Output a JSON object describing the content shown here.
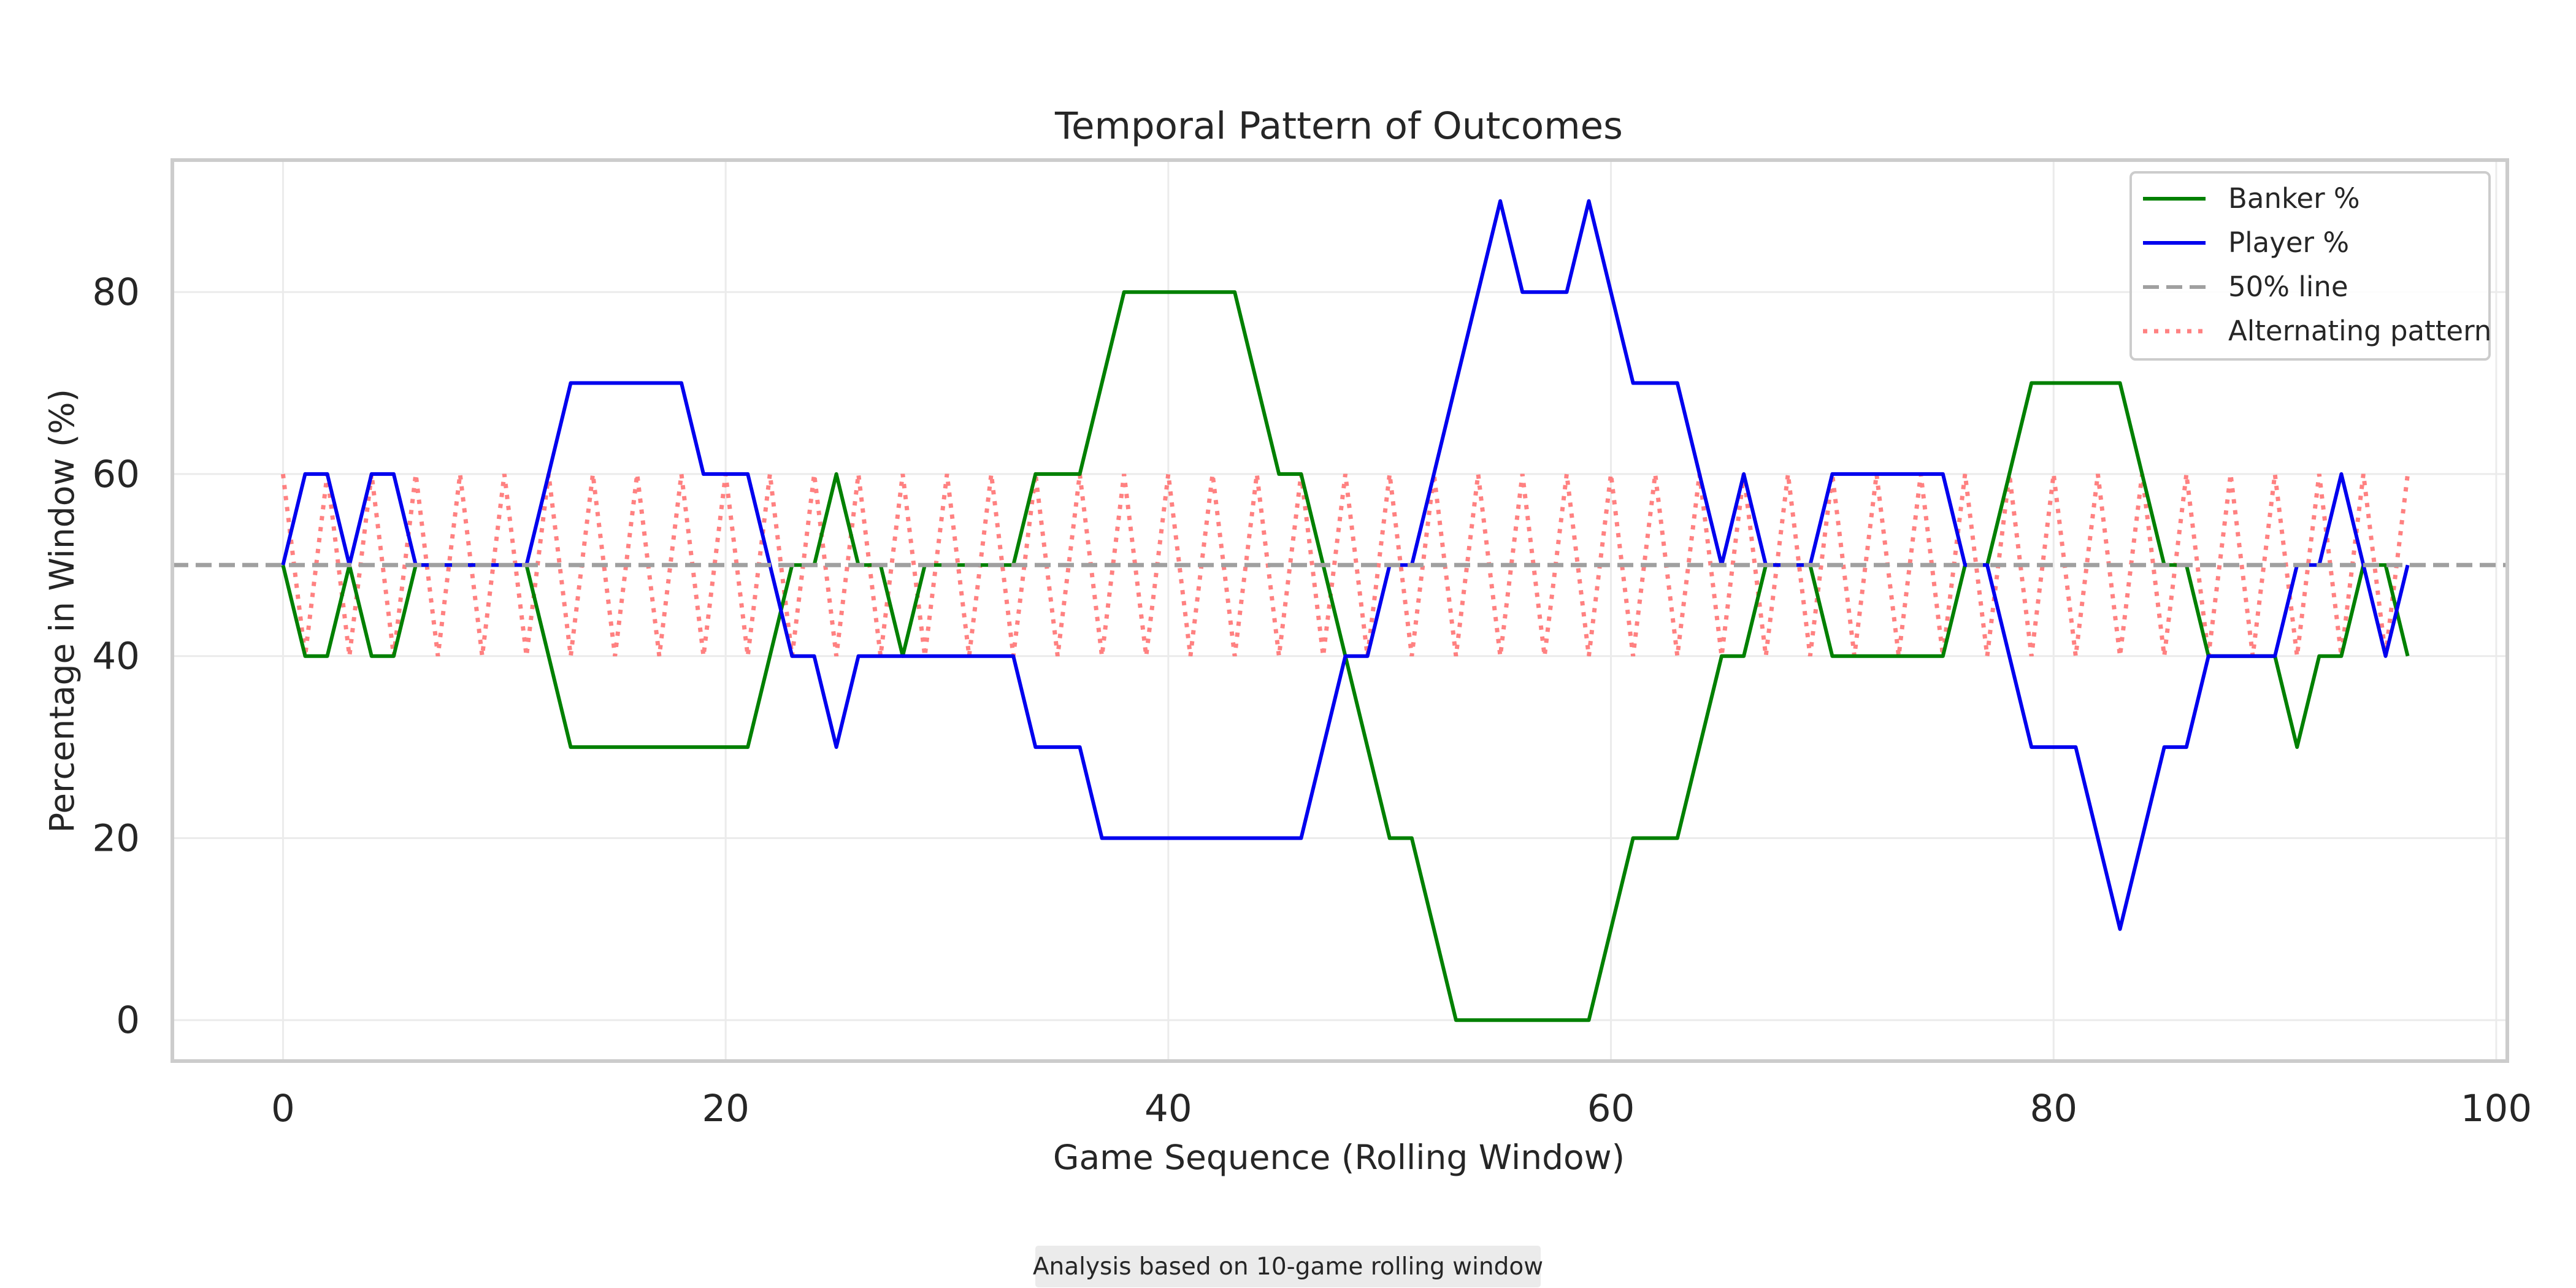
{
  "chart_data": {
    "type": "line",
    "title": "Temporal Pattern of Outcomes",
    "xlabel": "Game Sequence (Rolling Window)",
    "ylabel": "Percentage in Window (%)",
    "xlim": [
      -5,
      100.5
    ],
    "ylim": [
      -4.5,
      94.5
    ],
    "xticks": [
      0,
      20,
      40,
      60,
      80,
      100
    ],
    "yticks": [
      0,
      20,
      40,
      60,
      80
    ],
    "grid": true,
    "legend_position": "top-right",
    "series": [
      {
        "name": "Banker %",
        "color": "#008000",
        "style": "solid",
        "x": [
          0,
          1,
          2,
          3,
          4,
          5,
          6,
          7,
          8,
          9,
          10,
          11,
          12,
          13,
          14,
          15,
          16,
          17,
          18,
          19,
          20,
          21,
          22,
          23,
          24,
          25,
          26,
          27,
          28,
          29,
          30,
          31,
          32,
          33,
          34,
          35,
          36,
          37,
          38,
          39,
          40,
          41,
          42,
          43,
          44,
          45,
          46,
          47,
          48,
          49,
          50,
          51,
          52,
          53,
          54,
          55,
          56,
          57,
          58,
          59,
          60,
          61,
          62,
          63,
          64,
          65,
          66,
          67,
          68,
          69,
          70,
          71,
          72,
          73,
          74,
          75,
          76,
          77,
          78,
          79,
          80,
          81,
          82,
          83,
          84,
          85,
          86,
          87,
          88,
          89,
          90,
          91,
          92,
          93,
          94,
          95,
          96
        ],
        "values": [
          50,
          40,
          40,
          50,
          40,
          40,
          50,
          50,
          50,
          50,
          50,
          50,
          40,
          30,
          30,
          30,
          30,
          30,
          30,
          30,
          30,
          30,
          40,
          50,
          50,
          60,
          50,
          50,
          40,
          50,
          50,
          50,
          50,
          50,
          60,
          60,
          60,
          70,
          80,
          80,
          80,
          80,
          80,
          80,
          70,
          60,
          60,
          50,
          40,
          30,
          20,
          20,
          10,
          0,
          0,
          0,
          0,
          0,
          0,
          0,
          10,
          20,
          20,
          20,
          30,
          40,
          40,
          50,
          50,
          50,
          40,
          40,
          40,
          40,
          40,
          40,
          50,
          50,
          60,
          70,
          70,
          70,
          70,
          70,
          60,
          50,
          50,
          40,
          40,
          40,
          40,
          30,
          40,
          40,
          50,
          50,
          40
        ]
      },
      {
        "name": "Player %",
        "color": "#0000ee",
        "style": "solid",
        "x": [
          0,
          1,
          2,
          3,
          4,
          5,
          6,
          7,
          8,
          9,
          10,
          11,
          12,
          13,
          14,
          15,
          16,
          17,
          18,
          19,
          20,
          21,
          22,
          23,
          24,
          25,
          26,
          27,
          28,
          29,
          30,
          31,
          32,
          33,
          34,
          35,
          36,
          37,
          38,
          39,
          40,
          41,
          42,
          43,
          44,
          45,
          46,
          47,
          48,
          49,
          50,
          51,
          52,
          53,
          54,
          55,
          56,
          57,
          58,
          59,
          60,
          61,
          62,
          63,
          64,
          65,
          66,
          67,
          68,
          69,
          70,
          71,
          72,
          73,
          74,
          75,
          76,
          77,
          78,
          79,
          80,
          81,
          82,
          83,
          84,
          85,
          86,
          87,
          88,
          89,
          90,
          91,
          92,
          93,
          94,
          95,
          96
        ],
        "values": [
          50,
          60,
          60,
          50,
          60,
          60,
          50,
          50,
          50,
          50,
          50,
          50,
          60,
          70,
          70,
          70,
          70,
          70,
          70,
          60,
          60,
          60,
          50,
          40,
          40,
          30,
          40,
          40,
          40,
          40,
          40,
          40,
          40,
          40,
          30,
          30,
          30,
          20,
          20,
          20,
          20,
          20,
          20,
          20,
          20,
          20,
          20,
          30,
          40,
          40,
          50,
          50,
          60,
          70,
          80,
          90,
          80,
          80,
          80,
          90,
          80,
          70,
          70,
          70,
          60,
          50,
          60,
          50,
          50,
          50,
          60,
          60,
          60,
          60,
          60,
          60,
          50,
          50,
          40,
          30,
          30,
          30,
          20,
          10,
          20,
          30,
          30,
          40,
          40,
          40,
          40,
          50,
          50,
          60,
          50,
          40,
          50
        ]
      },
      {
        "name": "50% line",
        "color": "#a0a0a0",
        "style": "dashed",
        "y": 50
      },
      {
        "name": "Alternating pattern",
        "color": "#ff6b6b",
        "style": "dotted",
        "x_start": 0,
        "x_end": 96,
        "values_pattern": [
          60,
          40
        ]
      }
    ]
  },
  "footnote": "Analysis based on 10-game rolling window"
}
